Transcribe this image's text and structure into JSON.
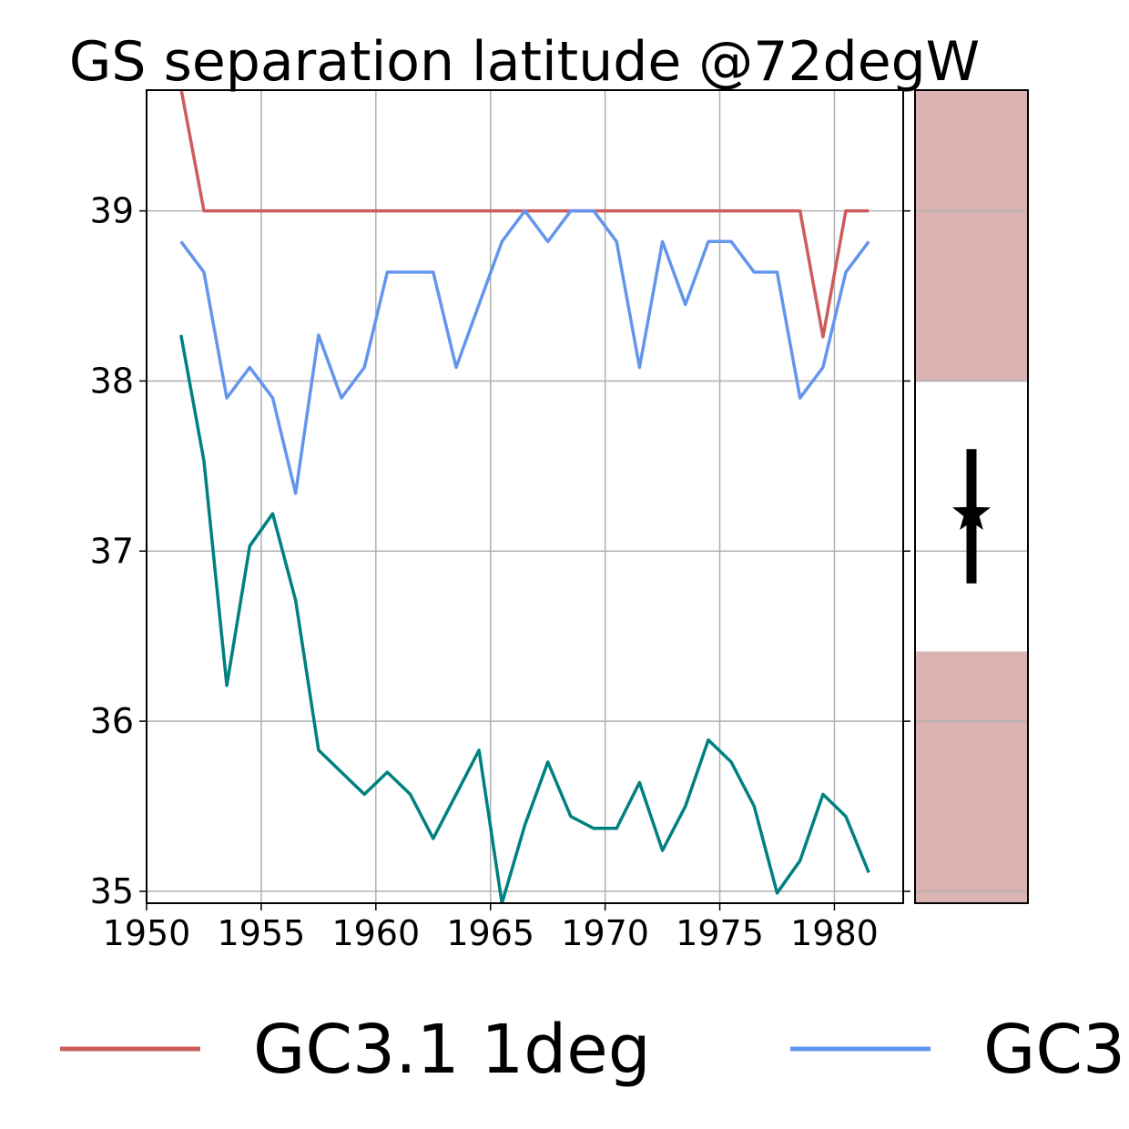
{
  "chart_data": [
    {
      "type": "line",
      "title": "GS separation latitude @72degW",
      "xlabel": "",
      "ylabel": "",
      "xlim": [
        1950,
        1983
      ],
      "ylim": [
        34.93,
        39.71
      ],
      "grid": true,
      "x_ticks": [
        "1950",
        "1955",
        "1960",
        "1965",
        "1970",
        "1975",
        "1980"
      ],
      "y_ticks": [
        "35",
        "36",
        "37",
        "38",
        "39"
      ],
      "x": [
        1951.5,
        1952.5,
        1953.5,
        1954.5,
        1955.5,
        1956.5,
        1957.5,
        1958.5,
        1959.5,
        1960.5,
        1961.5,
        1962.5,
        1963.5,
        1964.5,
        1965.5,
        1966.5,
        1967.5,
        1968.5,
        1969.5,
        1970.5,
        1971.5,
        1972.5,
        1973.5,
        1974.5,
        1975.5,
        1976.5,
        1977.5,
        1978.5,
        1979.5,
        1980.5,
        1981.5
      ],
      "series": [
        {
          "name": "GC3.1 1deg",
          "color": "#cd5c5c",
          "values": [
            39.72,
            39.0,
            39.0,
            39.0,
            39.0,
            39.0,
            39.0,
            39.0,
            39.0,
            39.0,
            39.0,
            39.0,
            39.0,
            39.0,
            39.0,
            39.0,
            39.0,
            39.0,
            39.0,
            39.0,
            39.0,
            39.0,
            39.0,
            39.0,
            39.0,
            39.0,
            39.0,
            39.0,
            38.26,
            39.0,
            39.0
          ]
        },
        {
          "name": "GC3",
          "color": "#6495ed",
          "values": [
            38.82,
            38.64,
            37.9,
            38.08,
            37.9,
            37.34,
            38.27,
            37.9,
            38.08,
            38.64,
            38.64,
            38.64,
            38.08,
            38.45,
            38.82,
            39.0,
            38.82,
            39.0,
            39.0,
            38.82,
            38.08,
            38.82,
            38.45,
            38.82,
            38.82,
            38.64,
            38.64,
            37.9,
            38.08,
            38.64,
            38.82
          ]
        },
        {
          "name": "",
          "color": "#008080",
          "values": [
            38.27,
            37.53,
            36.21,
            37.03,
            37.22,
            36.71,
            35.83,
            35.7,
            35.57,
            35.7,
            35.57,
            35.31,
            35.57,
            35.83,
            34.93,
            35.39,
            35.76,
            35.44,
            35.37,
            35.37,
            35.64,
            35.24,
            35.5,
            35.89,
            35.76,
            35.5,
            34.99,
            35.18,
            35.57,
            35.44,
            35.11
          ]
        }
      ]
    },
    {
      "type": "errorbar",
      "ylim": [
        34.93,
        39.71
      ],
      "band_color": "#dbb3b3",
      "band_white_range": [
        36.41,
        38.0
      ],
      "point": 37.22,
      "error_range": [
        36.81,
        37.6
      ],
      "marker": "star-icon"
    }
  ]
}
